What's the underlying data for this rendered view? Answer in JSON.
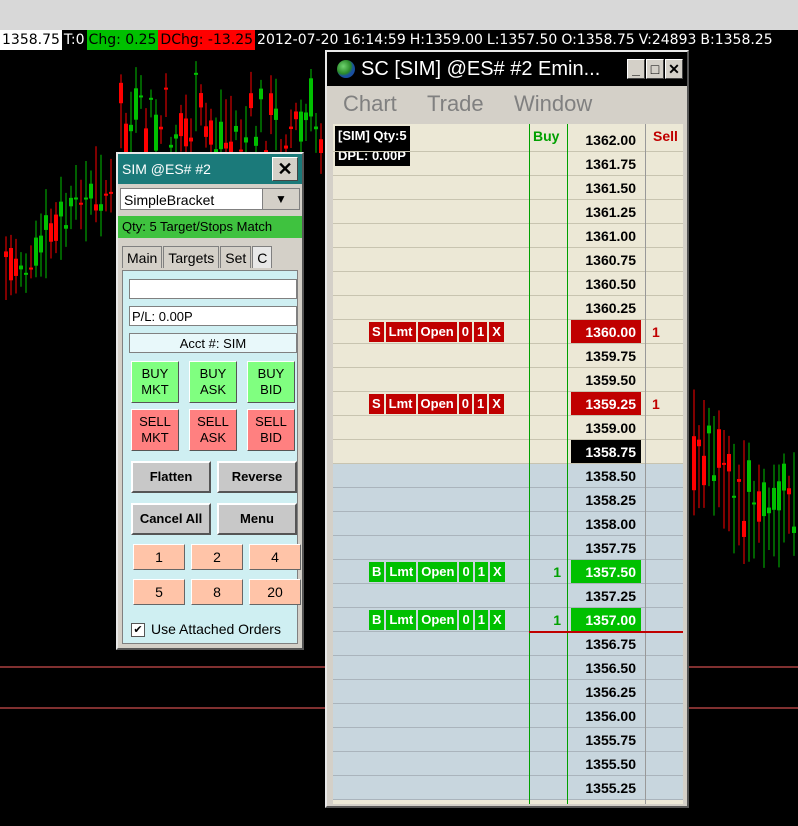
{
  "infobar": {
    "last": "1358.75",
    "ticks": "T:0",
    "chg": "Chg: 0.25",
    "dchg": "DChg: -13.25",
    "datetime": "2012-07-20 16:14:59",
    "high": "H:1359.00",
    "low": "L:1357.50",
    "open": "O:1358.75",
    "volume": "V:24893",
    "bid": "B:1358.25"
  },
  "trade_window": {
    "title": "SIM @ES#  #2",
    "close": "✕",
    "strategy": "SimpleBracket",
    "qty_status": "Qty: 5 Target/Stops Match",
    "tabs": [
      "Main",
      "Targets",
      "Set",
      "C"
    ],
    "blank_field": "",
    "pl": "P/L: 0.00P",
    "account": "Acct #: SIM",
    "buttons": {
      "buy_mkt": "BUY MKT",
      "buy_ask": "BUY ASK",
      "buy_bid": "BUY BID",
      "sell_mkt": "SELL MKT",
      "sell_ask": "SELL ASK",
      "sell_bid": "SELL BID",
      "flatten": "Flatten",
      "reverse": "Reverse",
      "cancel_all": "Cancel All",
      "menu": "Menu"
    },
    "quantities": [
      "1",
      "2",
      "4",
      "5",
      "8",
      "20"
    ],
    "attached_orders_label": "Use Attached Orders",
    "attached_orders_checked": "✔"
  },
  "dom_window": {
    "title": "SC [SIM] @ES#  #2   Emin...",
    "menu": [
      "Chart",
      "Trade",
      "Window"
    ],
    "sim_info": "[SIM]  Qty:5",
    "dpl": "DPL: 0.00P",
    "buy_header": "Buy",
    "sell_header": "Sell",
    "order_parts_sell": [
      "S",
      "Lmt",
      "Open",
      "0",
      "1",
      "X"
    ],
    "order_parts_buy": [
      "B",
      "Lmt",
      "Open",
      "0",
      "1",
      "X"
    ],
    "ladder": [
      {
        "price": "1362.00",
        "side": "ask"
      },
      {
        "price": "1361.75",
        "side": "ask"
      },
      {
        "price": "1361.50",
        "side": "ask"
      },
      {
        "price": "1361.25",
        "side": "ask"
      },
      {
        "price": "1361.00",
        "side": "ask"
      },
      {
        "price": "1360.75",
        "side": "ask"
      },
      {
        "price": "1360.50",
        "side": "ask"
      },
      {
        "price": "1360.25",
        "side": "ask"
      },
      {
        "price": "1360.00",
        "side": "ask",
        "sell": "1",
        "order": "sell"
      },
      {
        "price": "1359.75",
        "side": "ask"
      },
      {
        "price": "1359.50",
        "side": "ask"
      },
      {
        "price": "1359.25",
        "side": "ask",
        "sell": "1",
        "order": "sell"
      },
      {
        "price": "1359.00",
        "side": "ask"
      },
      {
        "price": "1358.75",
        "side": "ask",
        "last": true
      },
      {
        "price": "1358.50",
        "side": "bid"
      },
      {
        "price": "1358.25",
        "side": "bid"
      },
      {
        "price": "1358.00",
        "side": "bid"
      },
      {
        "price": "1357.75",
        "side": "bid"
      },
      {
        "price": "1357.50",
        "side": "bid",
        "buy": "1",
        "order": "buy"
      },
      {
        "price": "1357.25",
        "side": "bid"
      },
      {
        "price": "1357.00",
        "side": "bid",
        "buy": "1",
        "order": "buy"
      },
      {
        "price": "1356.75",
        "side": "bid"
      },
      {
        "price": "1356.50",
        "side": "bid"
      },
      {
        "price": "1356.25",
        "side": "bid"
      },
      {
        "price": "1356.00",
        "side": "bid"
      },
      {
        "price": "1355.75",
        "side": "bid"
      },
      {
        "price": "1355.50",
        "side": "bid"
      },
      {
        "price": "1355.25",
        "side": "bid"
      }
    ]
  },
  "colors": {
    "up": "#00c000",
    "down": "#ff0000",
    "order_line": "#ff6060"
  }
}
